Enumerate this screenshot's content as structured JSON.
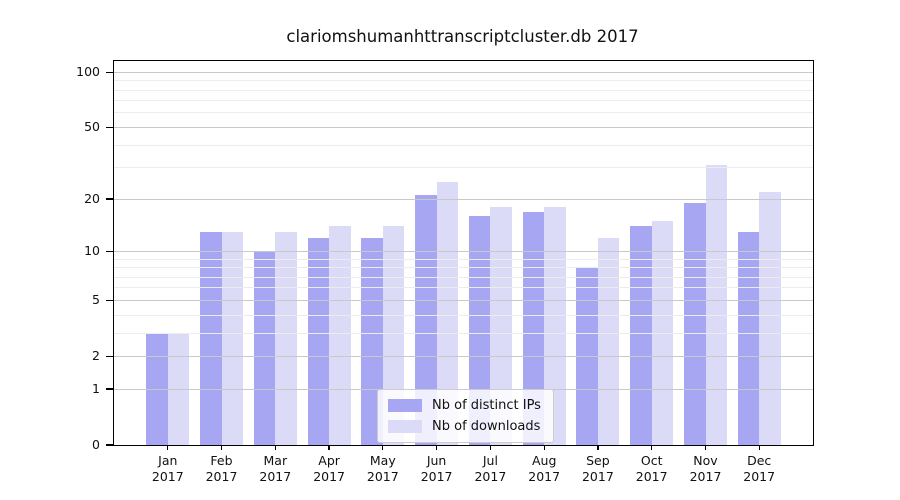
{
  "chart_data": {
    "type": "bar",
    "title": "clariomshumanhttranscriptcluster.db 2017",
    "categories": [
      "Jan 2017",
      "Feb 2017",
      "Mar 2017",
      "Apr 2017",
      "May 2017",
      "Jun 2017",
      "Jul 2017",
      "Aug 2017",
      "Sep 2017",
      "Oct 2017",
      "Nov 2017",
      "Dec 2017"
    ],
    "series": [
      {
        "name": "Nb of distinct IPs",
        "color": "#a6a6f2",
        "values": [
          3,
          13,
          10,
          12,
          12,
          21,
          16,
          17,
          8,
          14,
          19,
          13
        ]
      },
      {
        "name": "Nb of downloads",
        "color": "#dbdbf8",
        "values": [
          3,
          13,
          13,
          14,
          14,
          25,
          18,
          18,
          12,
          15,
          31,
          22
        ]
      }
    ],
    "xlabel": "",
    "ylabel": "",
    "yscale": "log1p",
    "ylim": [
      0,
      115
    ],
    "yticks_major": [
      0,
      1,
      2,
      5,
      10,
      20,
      50,
      100
    ],
    "yticks_minor": [
      3,
      4,
      6,
      7,
      8,
      9,
      30,
      40,
      60,
      70,
      80,
      90
    ],
    "grid": true,
    "grid_major_color": "#c9c9c9",
    "grid_minor_color": "#ececec",
    "axis_color": "#000000",
    "background_color": "#ffffff",
    "legend_position": "bottom-center"
  }
}
